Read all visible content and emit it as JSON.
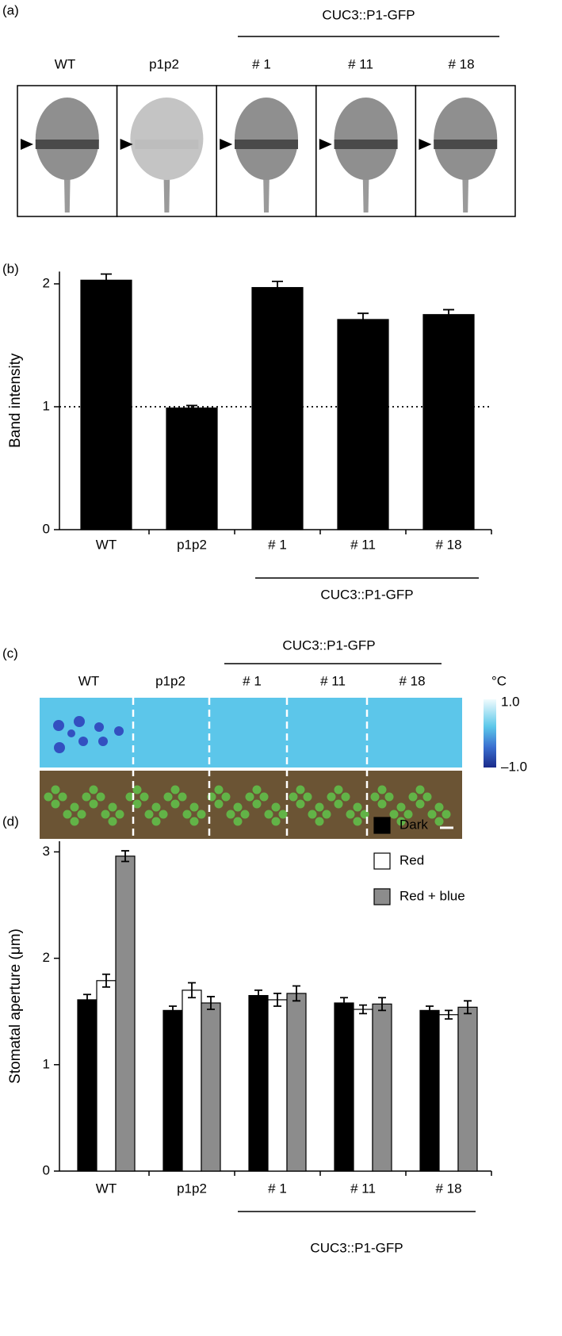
{
  "panel_a": {
    "panel_label": "(a)",
    "group_label": "CUC3::P1-GFP",
    "labels": [
      "WT",
      "p1p2",
      "# 1",
      "# 11",
      "# 18"
    ]
  },
  "panel_c": {
    "panel_label": "(c)",
    "group_label": "CUC3::P1-GFP",
    "labels": [
      "WT",
      "p1p2",
      "# 1",
      "# 11",
      "# 18"
    ],
    "colorbar_unit": "°C",
    "colorbar_max": "1.0",
    "colorbar_min": "–1.0"
  },
  "chart_data": [
    {
      "type": "bar",
      "panel_label": "(b)",
      "y_label": "Band intensity",
      "group_label": "CUC3::P1-GFP",
      "categories": [
        "WT",
        "p1p2",
        "# 1",
        "# 11",
        "# 18"
      ],
      "series": [
        {
          "color": "#000000",
          "values": [
            2.03,
            0.99,
            1.97,
            1.71,
            1.75
          ],
          "errors": [
            0.05,
            0.02,
            0.05,
            0.05,
            0.04
          ]
        }
      ],
      "ylim": [
        0,
        2.1
      ],
      "yticks": [
        0,
        1,
        2
      ],
      "reference_line": 1
    },
    {
      "type": "grouped_bar",
      "panel_label": "(d)",
      "y_label": "Stomatal aperture (μm)",
      "group_label": "CUC3::P1-GFP",
      "categories": [
        "WT",
        "p1p2",
        "# 1",
        "# 11",
        "# 18"
      ],
      "legend": "top-right",
      "series": [
        {
          "name": "Dark",
          "color": "#000000",
          "values": [
            1.61,
            1.51,
            1.65,
            1.58,
            1.51
          ],
          "errors": [
            0.05,
            0.04,
            0.05,
            0.05,
            0.04
          ]
        },
        {
          "name": "Red",
          "color": "#ffffff",
          "values": [
            1.79,
            1.7,
            1.61,
            1.52,
            1.47
          ],
          "errors": [
            0.06,
            0.07,
            0.06,
            0.04,
            0.04
          ]
        },
        {
          "name": "Red + blue",
          "color": "#8c8c8c",
          "values": [
            2.96,
            1.58,
            1.67,
            1.57,
            1.54
          ],
          "errors": [
            0.05,
            0.06,
            0.07,
            0.06,
            0.06
          ]
        }
      ],
      "ylim": [
        0,
        3.1
      ],
      "yticks": [
        0,
        1,
        2,
        3
      ]
    }
  ]
}
